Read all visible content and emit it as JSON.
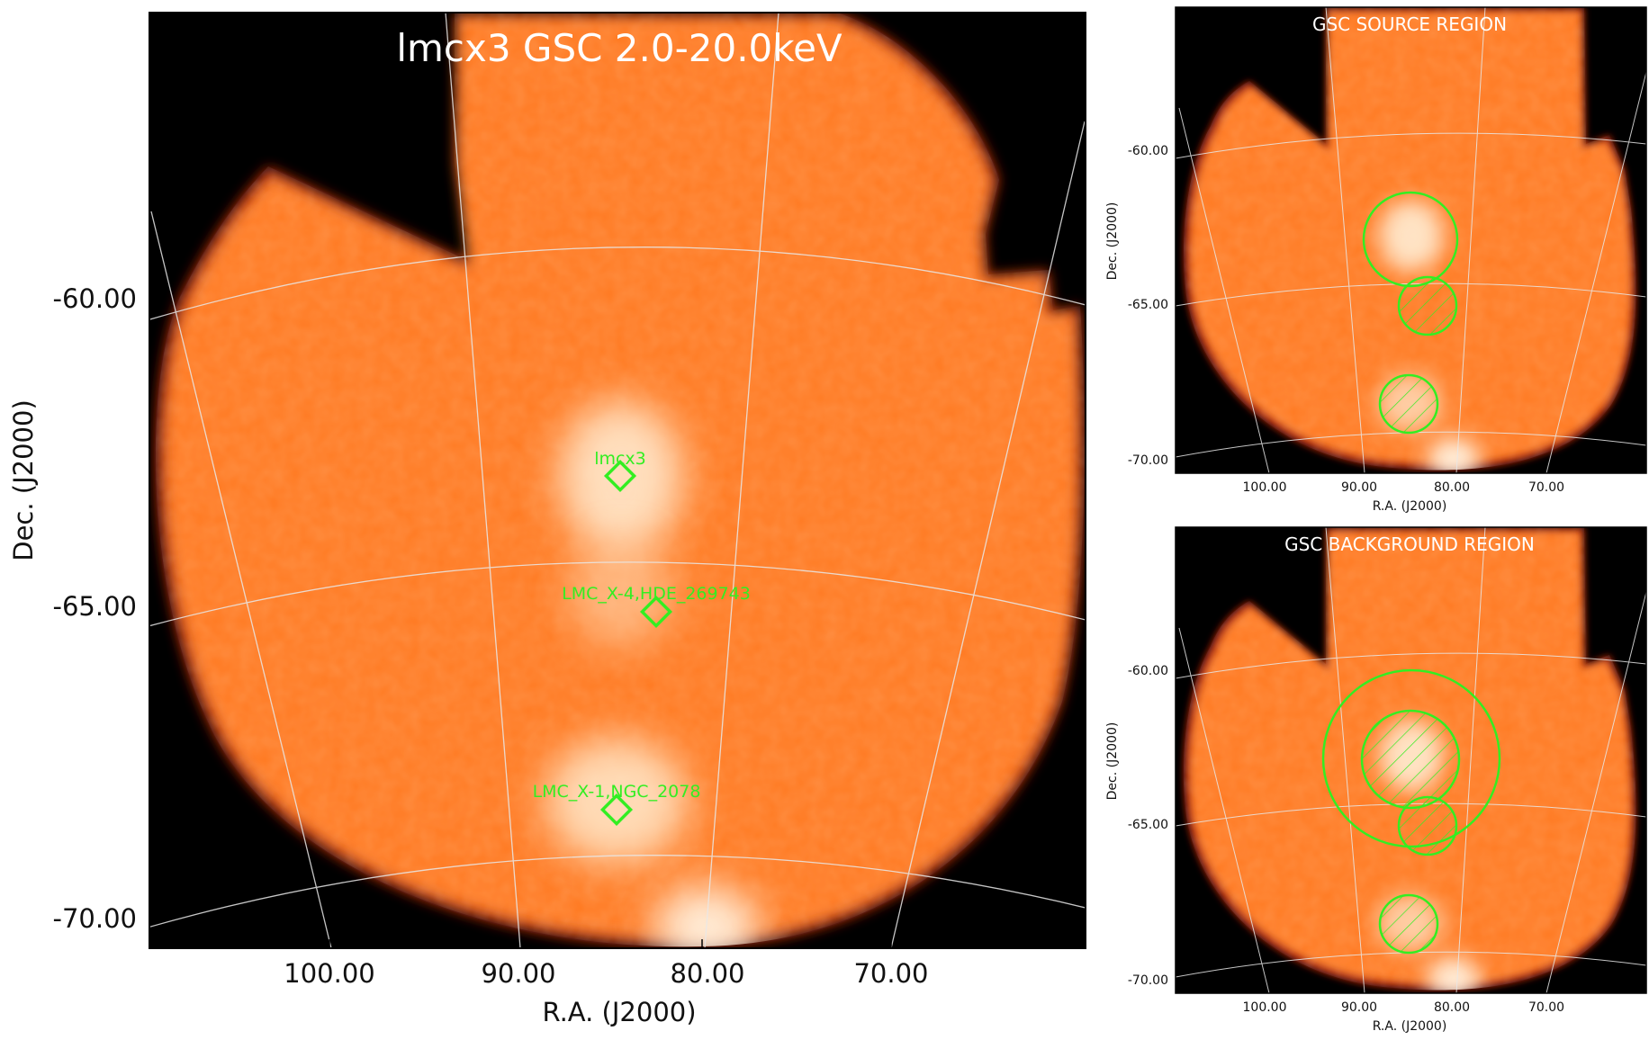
{
  "colors": {
    "background": "#000000",
    "map_fill": "#ff7a22",
    "map_edge": "#b3200a",
    "bright": "#fff0dc",
    "grid": "#e8e8e8",
    "region": "#33ee22",
    "source_label": "#33ee22",
    "title_text": "#ffffff"
  },
  "main_panel": {
    "title": "lmcx3 GSC 2.0-20.0keV",
    "xlabel": "R.A. (J2000)",
    "ylabel": "Dec. (J2000)",
    "x_ticks": [
      "100.00",
      "90.00",
      "80.00",
      "70.00"
    ],
    "y_ticks": [
      "-60.00",
      "-65.00",
      "-70.00"
    ],
    "sources": [
      {
        "name": "lmcx3",
        "ra": 84.7,
        "dec": -64.1
      },
      {
        "name": "LMC_X-4,HDE_269743",
        "ra": 83.2,
        "dec": -66.4
      },
      {
        "name": "LMC_X-1,NGC_2078",
        "ra": 84.9,
        "dec": -69.7
      }
    ]
  },
  "source_panel": {
    "title": "GSC SOURCE REGION",
    "xlabel": "R.A. (J2000)",
    "ylabel": "Dec. (J2000)",
    "x_ticks": [
      "100.00",
      "90.00",
      "80.00",
      "70.00"
    ],
    "y_ticks": [
      "-60.00",
      "-65.00",
      "-70.00"
    ],
    "regions": [
      {
        "type": "source-circle",
        "excluded": false
      },
      {
        "type": "exclusion-circle",
        "excluded": true
      },
      {
        "type": "exclusion-circle",
        "excluded": true
      }
    ]
  },
  "background_panel": {
    "title": "GSC BACKGROUND REGION",
    "xlabel": "R.A. (J2000)",
    "ylabel": "Dec. (J2000)",
    "x_ticks": [
      "100.00",
      "90.00",
      "80.00",
      "70.00"
    ],
    "y_ticks": [
      "-60.00",
      "-65.00",
      "-70.00"
    ],
    "regions": [
      {
        "type": "background-annulus-outer",
        "excluded": false
      },
      {
        "type": "source-exclusion-circle",
        "excluded": true
      },
      {
        "type": "exclusion-circle",
        "excluded": true
      },
      {
        "type": "exclusion-circle",
        "excluded": true
      }
    ]
  }
}
